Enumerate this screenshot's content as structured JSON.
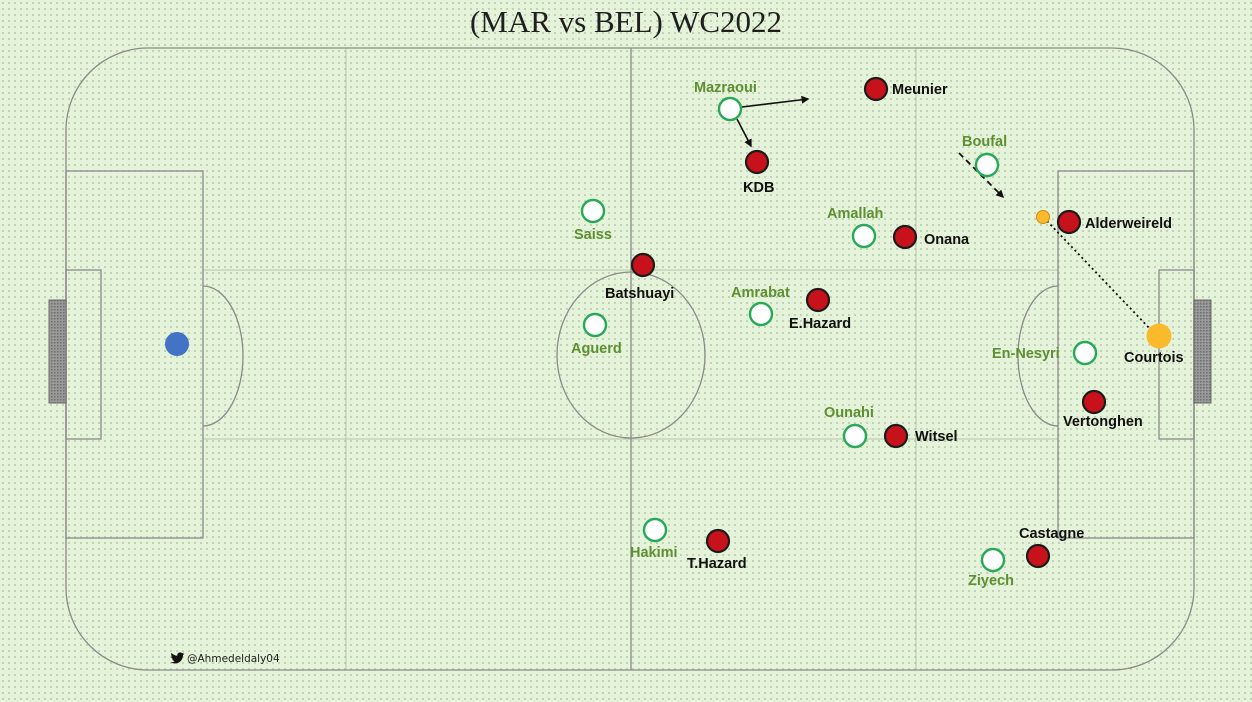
{
  "title": "(MAR vs BEL) WC2022",
  "credit": "@Ahmedeldaly04",
  "colors": {
    "morocco_ring": "#27a957",
    "morocco_label": "#5e8f32",
    "belgium_fill": "#c8121b",
    "ball": "#fbb92c",
    "marker": "#4472c4"
  },
  "icons": {
    "credit": "twitter-bird-icon",
    "goal": "goal-net-icon"
  },
  "morocco": [
    {
      "name": "Mazraoui"
    },
    {
      "name": "Boufal"
    },
    {
      "name": "Saiss"
    },
    {
      "name": "Amallah"
    },
    {
      "name": "Amrabat"
    },
    {
      "name": "Aguerd"
    },
    {
      "name": "En-Nesyri"
    },
    {
      "name": "Ounahi"
    },
    {
      "name": "Hakimi"
    },
    {
      "name": "Ziyech"
    }
  ],
  "belgium": [
    {
      "name": "Meunier"
    },
    {
      "name": "KDB"
    },
    {
      "name": "Alderweireld"
    },
    {
      "name": "Onana"
    },
    {
      "name": "Batshuayi"
    },
    {
      "name": "E.Hazard"
    },
    {
      "name": "Courtois"
    },
    {
      "name": "Vertonghen"
    },
    {
      "name": "Witsel"
    },
    {
      "name": "Castagne"
    },
    {
      "name": "T.Hazard"
    }
  ]
}
